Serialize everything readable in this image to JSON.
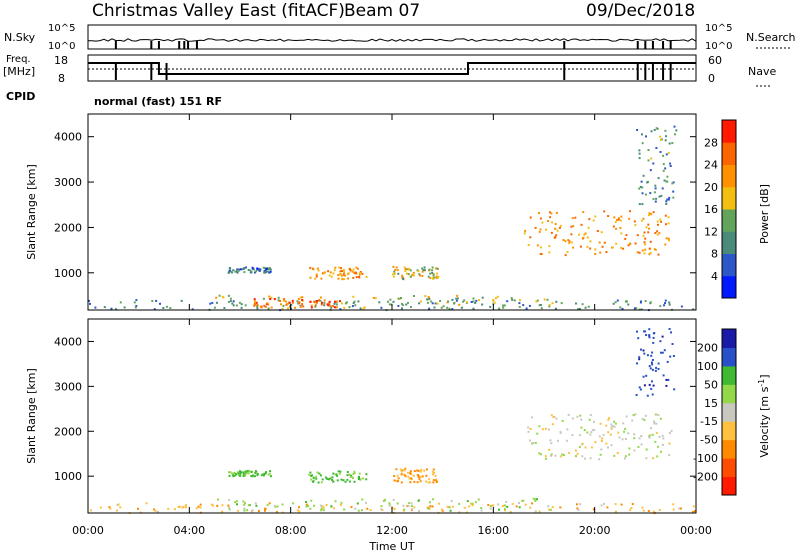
{
  "header": {
    "title": "Christmas Valley East (fitACF)",
    "beam": "Beam 07",
    "date": "09/Dec/2018"
  },
  "strip_nsky": {
    "left_label": "N.Sky",
    "left_ticks": [
      "10^5",
      "10^0"
    ],
    "right_ticks": [
      "10^5",
      "10^0"
    ],
    "right_label": "N.Search"
  },
  "strip_freq": {
    "left_label_1": "Freq.",
    "left_label_2": "[MHz]",
    "left_ticks": [
      "18",
      "8"
    ],
    "right_ticks": [
      "60",
      "0"
    ],
    "right_label": "Nave"
  },
  "cpid": {
    "label": "CPID",
    "program": "normal (fast) 151 RF"
  },
  "colors": {
    "power": [
      "#0019ff",
      "#2d56c8",
      "#4a8a78",
      "#62a45c",
      "#f2bf10",
      "#ff9000",
      "#fa6500",
      "#ff1a00"
    ],
    "velocity": [
      "#ff1a00",
      "#ff4c00",
      "#ff8a00",
      "#ffc040",
      "#c8c8c0",
      "#92d84a",
      "#3fb832",
      "#2850c8",
      "#1a1aa8"
    ],
    "ground_gray": "#c8c8c0"
  },
  "chart_data": [
    {
      "type": "heatmap",
      "name": "power",
      "xlabel": "",
      "ylabel": "Slant Range [km]",
      "xlim": [
        0,
        24
      ],
      "ylim": [
        180,
        4500
      ],
      "y_ticks": [
        "1000",
        "2000",
        "3000",
        "4000"
      ],
      "colorbar": {
        "label": "Power [dB]",
        "range": [
          0,
          32
        ],
        "tick_labels": [
          "4",
          "8",
          "12",
          "16",
          "20",
          "24",
          "28"
        ]
      },
      "echo_regions": [
        {
          "t": [
            0.0,
            24.0
          ],
          "r": [
            200,
            420
          ],
          "value": 10
        },
        {
          "t": [
            5.0,
            18.5
          ],
          "r": [
            220,
            520
          ],
          "value": 16
        },
        {
          "t": [
            6.5,
            10.0
          ],
          "r": [
            250,
            450
          ],
          "value": 26
        },
        {
          "t": [
            5.5,
            7.2
          ],
          "r": [
            1020,
            1140
          ],
          "value": 9
        },
        {
          "t": [
            8.7,
            11.0
          ],
          "r": [
            880,
            1140
          ],
          "value": 22
        },
        {
          "t": [
            12.0,
            13.8
          ],
          "r": [
            880,
            1160
          ],
          "value": 17
        },
        {
          "t": [
            17.2,
            23.0
          ],
          "r": [
            1400,
            2400
          ],
          "value": 22
        },
        {
          "t": [
            21.6,
            23.2
          ],
          "r": [
            2500,
            4300
          ],
          "value": 11
        }
      ]
    },
    {
      "type": "heatmap",
      "name": "velocity",
      "xlabel": "Time UT",
      "ylabel": "Slant Range [km]",
      "xlim": [
        0,
        24
      ],
      "ylim": [
        180,
        4500
      ],
      "x_ticks": [
        "00:00",
        "04:00",
        "08:00",
        "12:00",
        "16:00",
        "20:00",
        "00:00"
      ],
      "y_ticks": [
        "1000",
        "2000",
        "3000",
        "4000"
      ],
      "colorbar": {
        "label": "Velocity [m s^-1]",
        "tick_labels": [
          "200",
          "100",
          "50",
          "15",
          "-15",
          "-50",
          "-100",
          "-200"
        ]
      },
      "echo_regions": [
        {
          "t": [
            0.0,
            24.0
          ],
          "r": [
            200,
            420
          ],
          "value": -40
        },
        {
          "t": [
            5.0,
            18.5
          ],
          "r": [
            250,
            520
          ],
          "value": 30
        },
        {
          "t": [
            5.5,
            7.2
          ],
          "r": [
            1020,
            1140
          ],
          "value": 60
        },
        {
          "t": [
            8.7,
            11.0
          ],
          "r": [
            880,
            1140
          ],
          "value": 60
        },
        {
          "t": [
            12.0,
            13.8
          ],
          "r": [
            880,
            1200
          ],
          "value": -60
        },
        {
          "t": [
            17.2,
            23.0
          ],
          "r": [
            1400,
            2400
          ],
          "value": 0
        },
        {
          "t": [
            21.6,
            23.2
          ],
          "r": [
            2800,
            4300
          ],
          "value": 180
        }
      ]
    }
  ]
}
